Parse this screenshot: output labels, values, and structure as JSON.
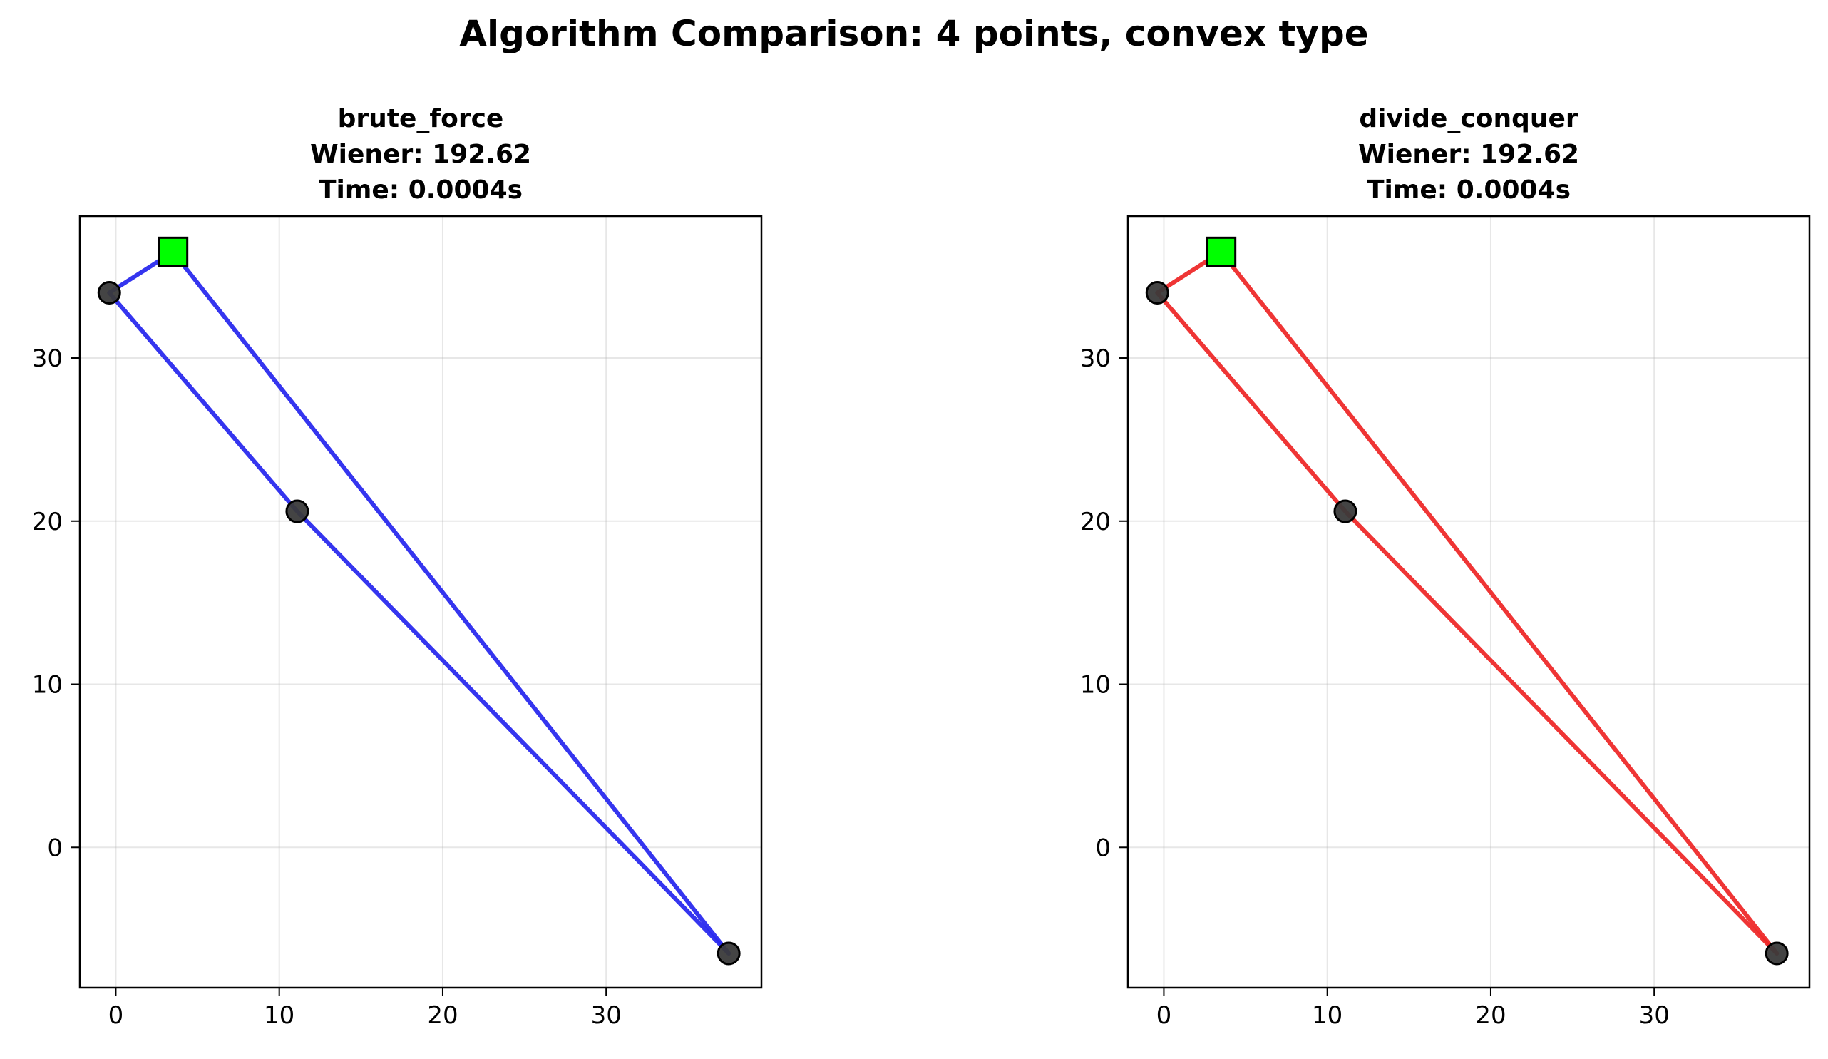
{
  "suptitle": "Algorithm Comparison: 4 points, convex type",
  "chart_data": [
    {
      "type": "line",
      "title_lines": [
        "brute_force",
        "Wiener: 192.62",
        "Time: 0.0004s"
      ],
      "xlabel": "",
      "ylabel": "",
      "xlim": [
        -2.2,
        39.5
      ],
      "ylim": [
        -8.6,
        38.7
      ],
      "xticks": [
        0,
        10,
        20,
        30
      ],
      "yticks": [
        0,
        10,
        20,
        30
      ],
      "grid": true,
      "line_color": "#2a2aee",
      "point_color": "#3a3a3a",
      "center_color": "#00ff00",
      "points": [
        [
          -0.4,
          34.0
        ],
        [
          11.1,
          20.6
        ],
        [
          37.5,
          -6.5
        ]
      ],
      "center": [
        3.5,
        36.5
      ],
      "edges": [
        [
          [
            -0.4,
            34.0
          ],
          [
            3.5,
            36.5
          ]
        ],
        [
          [
            3.5,
            36.5
          ],
          [
            37.5,
            -6.5
          ]
        ],
        [
          [
            -0.4,
            34.0
          ],
          [
            11.1,
            20.6
          ]
        ],
        [
          [
            11.1,
            20.6
          ],
          [
            37.5,
            -6.5
          ]
        ]
      ]
    },
    {
      "type": "line",
      "title_lines": [
        "divide_conquer",
        "Wiener: 192.62",
        "Time: 0.0004s"
      ],
      "xlabel": "",
      "ylabel": "",
      "xlim": [
        -2.2,
        39.5
      ],
      "ylim": [
        -8.6,
        38.7
      ],
      "xticks": [
        0,
        10,
        20,
        30
      ],
      "yticks": [
        0,
        10,
        20,
        30
      ],
      "grid": true,
      "line_color": "#ee2a2a",
      "point_color": "#3a3a3a",
      "center_color": "#00ff00",
      "points": [
        [
          -0.4,
          34.0
        ],
        [
          11.1,
          20.6
        ],
        [
          37.5,
          -6.5
        ]
      ],
      "center": [
        3.5,
        36.5
      ],
      "edges": [
        [
          [
            -0.4,
            34.0
          ],
          [
            3.5,
            36.5
          ]
        ],
        [
          [
            3.5,
            36.5
          ],
          [
            37.5,
            -6.5
          ]
        ],
        [
          [
            -0.4,
            34.0
          ],
          [
            11.1,
            20.6
          ]
        ],
        [
          [
            11.1,
            20.6
          ],
          [
            37.5,
            -6.5
          ]
        ]
      ]
    }
  ]
}
